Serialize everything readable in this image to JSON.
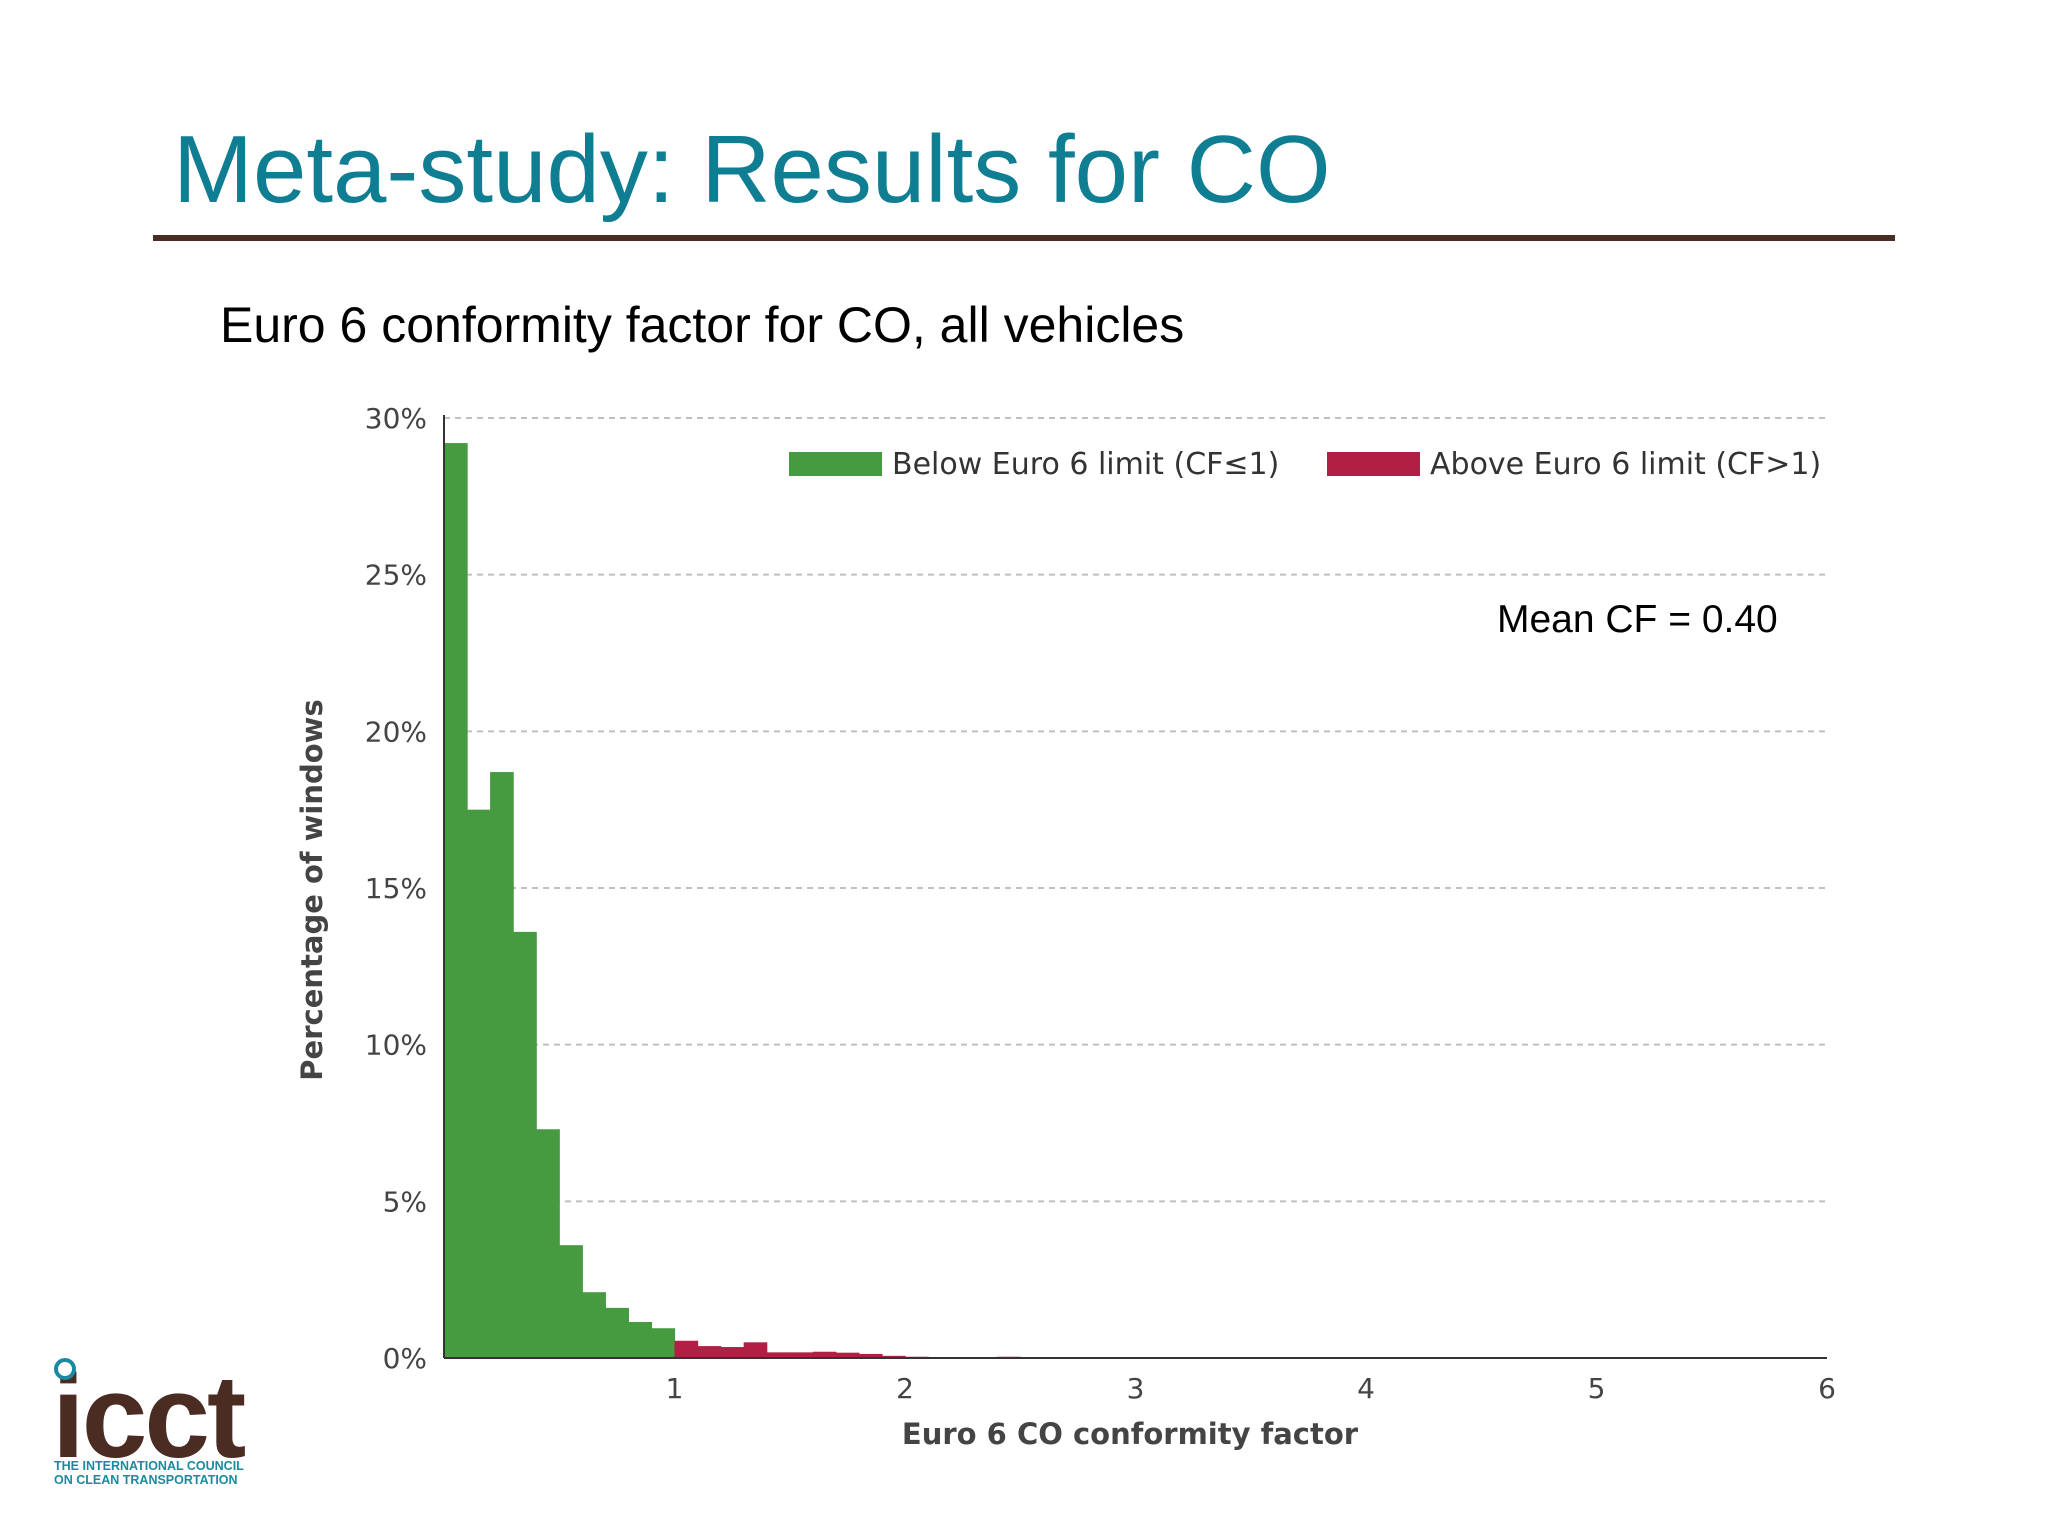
{
  "slide": {
    "title": "Meta-study: Results for CO",
    "subtitle": "Euro 6 conformity factor for CO, all vehicles"
  },
  "logo": {
    "word": "icct",
    "tagline_1": "THE INTERNATIONAL COUNCIL",
    "tagline_2": "ON CLEAN TRANSPORTATION"
  },
  "colors": {
    "title": "#0f7d92",
    "rule": "#4a2c22",
    "below": "#469a40",
    "above": "#b21f44",
    "grid": "#c0c0c0"
  },
  "chart_data": {
    "type": "bar",
    "title": "Euro 6 conformity factor for CO, all vehicles",
    "xlabel": "Euro 6 CO conformity factor",
    "ylabel": "Percentage of windows",
    "xlim": [
      0,
      6
    ],
    "ylim": [
      0,
      30
    ],
    "x_ticks": [
      1,
      2,
      3,
      4,
      5,
      6
    ],
    "y_ticks": [
      0,
      5,
      10,
      15,
      20,
      25,
      30
    ],
    "y_tick_labels": [
      "0%",
      "5%",
      "10%",
      "15%",
      "20%",
      "25%",
      "30%"
    ],
    "grid": true,
    "legend_position": "top-right",
    "bin_width": 0.1,
    "series": [
      {
        "name": "Below Euro 6 limit (CF≤1)",
        "color": "#469a40",
        "bins": [
          [
            0.0,
            29.2
          ],
          [
            0.1,
            17.5
          ],
          [
            0.2,
            18.7
          ],
          [
            0.3,
            13.6
          ],
          [
            0.4,
            7.3
          ],
          [
            0.5,
            3.6
          ],
          [
            0.6,
            2.1
          ],
          [
            0.7,
            1.6
          ],
          [
            0.8,
            1.15
          ],
          [
            0.9,
            0.95
          ]
        ]
      },
      {
        "name": "Above Euro 6 limit (CF>1)",
        "color": "#b21f44",
        "bins": [
          [
            1.0,
            0.55
          ],
          [
            1.1,
            0.38
          ],
          [
            1.2,
            0.35
          ],
          [
            1.3,
            0.5
          ],
          [
            1.4,
            0.18
          ],
          [
            1.5,
            0.18
          ],
          [
            1.6,
            0.2
          ],
          [
            1.7,
            0.17
          ],
          [
            1.8,
            0.13
          ],
          [
            1.9,
            0.07
          ],
          [
            2.0,
            0.04
          ],
          [
            2.1,
            0.03
          ],
          [
            2.2,
            0.02
          ],
          [
            2.3,
            0.02
          ],
          [
            2.4,
            0.04
          ],
          [
            2.5,
            0.03
          ],
          [
            2.6,
            0.02
          ],
          [
            2.7,
            0.01
          ],
          [
            2.8,
            0.01
          ],
          [
            2.9,
            0.01
          ],
          [
            3.0,
            0.01
          ],
          [
            3.1,
            0.01
          ],
          [
            3.2,
            0.01
          ]
        ]
      }
    ],
    "annotation": "Mean CF = 0.40"
  }
}
